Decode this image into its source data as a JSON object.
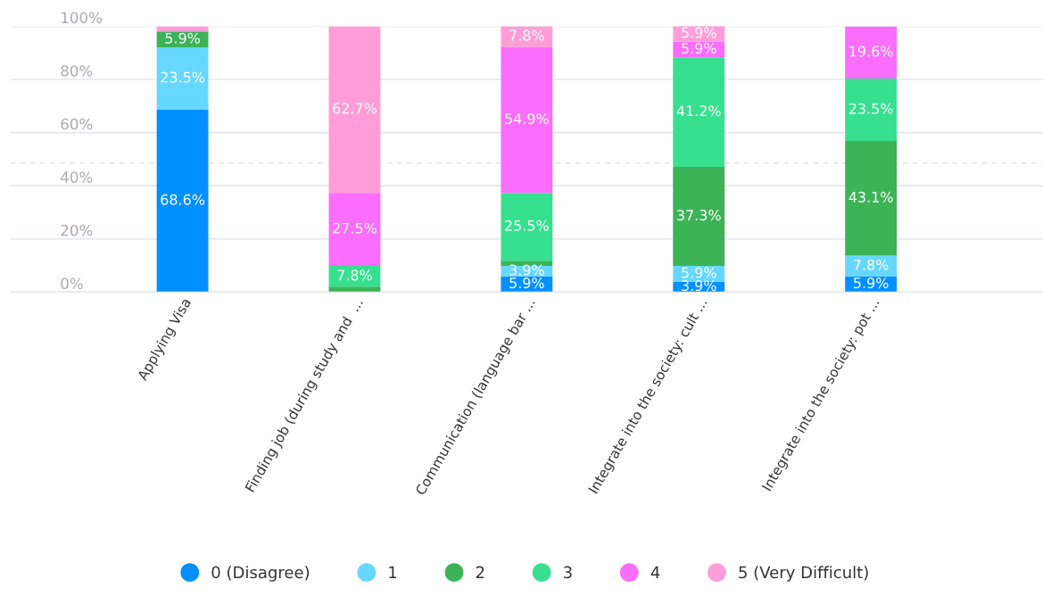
{
  "chart_data": {
    "type": "bar",
    "stacked": true,
    "categories": [
      "Applying Visa",
      "Finding job (during study and  ...",
      "Communication (language bar ...",
      "Integrate into the society: cult ...",
      "Integrate into the society: pot ..."
    ],
    "series": [
      {
        "name": "0 (Disagree)",
        "color": "#0090ff",
        "values": [
          68.6,
          null,
          5.9,
          3.9,
          5.9
        ],
        "value_labels": [
          "68.6%",
          null,
          "5.9%",
          "3.9%",
          "5.9%"
        ]
      },
      {
        "name": "1",
        "color": "#66d7ff",
        "values": [
          23.5,
          null,
          3.9,
          5.9,
          7.8
        ],
        "value_labels": [
          "23.5%",
          null,
          "3.9%",
          "5.9%",
          "7.8%"
        ]
      },
      {
        "name": "2",
        "color": "#3cb356",
        "values": [
          5.9,
          2.0,
          2.0,
          37.3,
          43.1
        ],
        "value_labels": [
          "5.9%",
          null,
          null,
          "37.3%",
          "43.1%"
        ]
      },
      {
        "name": "3",
        "color": "#36e08f",
        "values": [
          null,
          7.8,
          25.5,
          41.2,
          23.5
        ],
        "value_labels": [
          null,
          "7.8%",
          "25.5%",
          "41.2%",
          "23.5%"
        ]
      },
      {
        "name": "4",
        "color": "#fb6dfc",
        "values": [
          null,
          27.5,
          54.9,
          5.9,
          19.6
        ],
        "value_labels": [
          null,
          "27.5%",
          "54.9%",
          "5.9%",
          "19.6%"
        ]
      },
      {
        "name": "5 (Very Difficult)",
        "color": "#ff9dd8",
        "values": [
          2.0,
          62.7,
          7.8,
          5.9,
          null
        ],
        "value_labels": [
          null,
          "62.7%",
          "7.8%",
          "5.9%",
          null
        ]
      }
    ],
    "ylim": [
      0,
      100
    ],
    "yticks": [
      {
        "value": 0,
        "label": "0%"
      },
      {
        "value": 20,
        "label": "20%"
      },
      {
        "value": 40,
        "label": "40%"
      },
      {
        "value": 60,
        "label": "60%"
      },
      {
        "value": 80,
        "label": "80%"
      },
      {
        "value": 100,
        "label": "100%"
      }
    ],
    "ref_lines": [
      {
        "axis": "y",
        "value": 48.5,
        "color": "#dddddd",
        "line_style": "dashed"
      }
    ],
    "grid": "y",
    "legend": "bottom"
  }
}
